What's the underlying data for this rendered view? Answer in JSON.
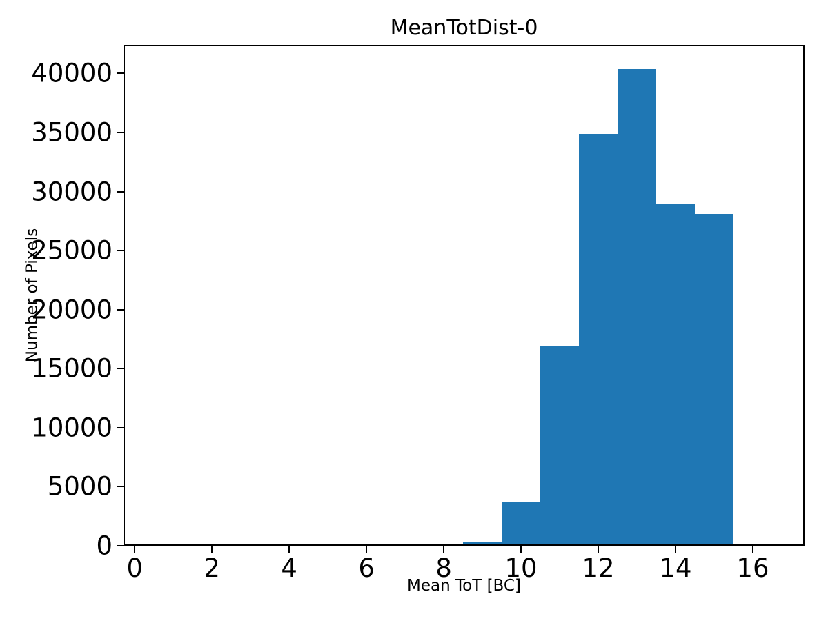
{
  "chart_data": {
    "type": "bar",
    "subtype": "histogram",
    "title": "MeanTotDist-0",
    "xlabel": "Mean ToT [BC]",
    "ylabel": "Number of Pixels",
    "bar_color": "#1f77b4",
    "bin_width": 1,
    "bin_left_edges": [
      8.5,
      9.5,
      10.5,
      11.5,
      12.5,
      13.5,
      14.5
    ],
    "values": [
      350,
      3700,
      16900,
      34900,
      40400,
      29000,
      28100
    ],
    "xticks": [
      0,
      2,
      4,
      6,
      8,
      10,
      12,
      14,
      16
    ],
    "yticks": [
      0,
      5000,
      10000,
      15000,
      20000,
      25000,
      30000,
      35000,
      40000
    ],
    "xlim": [
      -0.29,
      17.34
    ],
    "ylim": [
      0,
      42420
    ],
    "grid": false,
    "legend": null,
    "spine_color": "#000000",
    "background_color": "#ffffff"
  }
}
